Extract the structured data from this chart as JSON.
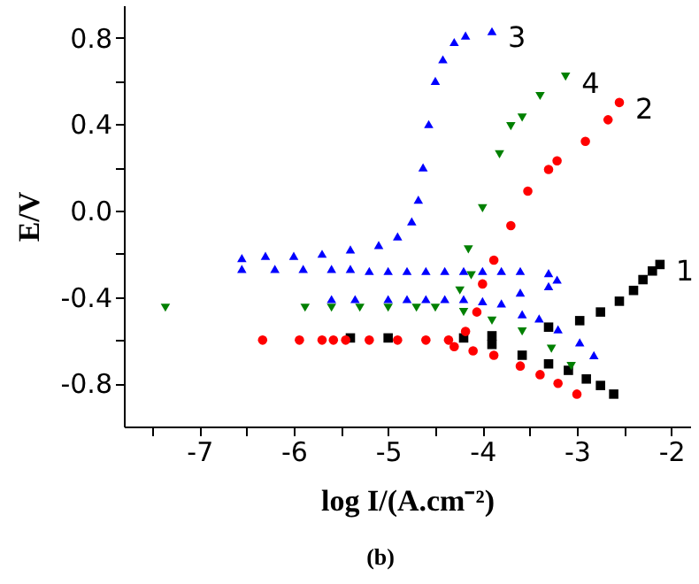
{
  "chart_data": {
    "type": "scatter",
    "xlabel": "log I/(A.cm⁻²)",
    "ylabel": "E/V",
    "annotations": [
      "(b)"
    ],
    "xlim": [
      -7.8,
      -1.8
    ],
    "ylim": [
      -1.0,
      0.95
    ],
    "xticks": [
      {
        "value": -7.5,
        "label": null
      },
      -7,
      {
        "value": -6.5,
        "label": null
      },
      -6,
      {
        "value": -5.5,
        "label": null
      },
      -5,
      {
        "value": -4.5,
        "label": null
      },
      -4,
      {
        "value": -3.5,
        "label": null
      },
      -3,
      {
        "value": -2.5,
        "label": null
      },
      -2
    ],
    "yticks": [
      -0.8,
      {
        "value": -0.6,
        "label": null
      },
      -0.4,
      {
        "value": -0.2,
        "label": null
      },
      {
        "value": 0,
        "label": "0.0"
      },
      {
        "value": 0.2,
        "label": null
      },
      0.4,
      {
        "value": 0.6,
        "label": null
      },
      0.8
    ],
    "grid": false,
    "series": [
      {
        "name": "1",
        "color": "#000000",
        "marker": "square",
        "x": [
          -2.61,
          -2.75,
          -2.9,
          -3.09,
          -3.3,
          -3.58,
          -3.9,
          -5.4,
          -5.0,
          -4.6,
          -4.2,
          -3.9,
          -3.58,
          -3.3,
          -2.97,
          -2.75,
          -2.55,
          -2.4,
          -2.3,
          -2.2,
          -2.12
        ],
        "values": [
          -0.85,
          -0.81,
          -0.78,
          -0.74,
          -0.71,
          -0.67,
          -0.62,
          -0.59,
          -0.59,
          null,
          -0.59,
          -0.58,
          null,
          -0.54,
          -0.51,
          -0.47,
          -0.42,
          -0.37,
          -0.32,
          -0.28,
          -0.25
        ]
      },
      {
        "name": "2",
        "color": "#ff0000",
        "marker": "circle",
        "x": [
          -3.0,
          -3.2,
          -3.39,
          -3.6,
          -3.88,
          -4.1,
          -4.3,
          -6.33,
          -5.94,
          -5.7,
          -5.58,
          -5.45,
          -5.2,
          -4.9,
          -4.6,
          -4.36,
          -4.18,
          -4.06,
          -4.0,
          -3.88,
          -3.7,
          -3.52,
          -3.3,
          -3.21,
          -2.91,
          -2.67,
          -2.55
        ],
        "values": [
          -0.85,
          -0.8,
          -0.76,
          -0.72,
          -0.67,
          -0.65,
          -0.63,
          -0.6,
          -0.6,
          -0.6,
          -0.6,
          -0.6,
          -0.6,
          -0.6,
          -0.6,
          -0.6,
          -0.56,
          -0.47,
          -0.34,
          -0.23,
          -0.07,
          0.09,
          0.19,
          0.23,
          0.32,
          0.42,
          0.5
        ]
      },
      {
        "name": "3",
        "color": "#0000ff",
        "marker": "triangle",
        "x": [
          -5.6,
          -5.35,
          -5.0,
          -4.8,
          -4.6,
          -4.4,
          -4.2,
          -4.0,
          -3.8,
          -3.58,
          -3.4,
          -3.2,
          -2.97,
          -2.82,
          -3.6,
          -3.3,
          -3.21,
          -3.3,
          -3.6,
          -3.8,
          -4.0,
          -4.2,
          -4.4,
          -4.6,
          -4.8,
          -5.0,
          -5.2,
          -5.4,
          -5.6,
          -5.9,
          -6.2,
          -6.55,
          -6.55,
          -6.3,
          -6.0,
          -5.7,
          -5.4,
          -5.1,
          -4.9,
          -4.75,
          -4.68,
          -4.63,
          -4.57,
          -4.5,
          -4.42,
          -4.3,
          -4.18,
          -3.9
        ],
        "values": [
          -0.41,
          -0.41,
          -0.41,
          -0.41,
          -0.41,
          -0.41,
          -0.41,
          -0.42,
          -0.43,
          -0.48,
          -0.5,
          -0.55,
          -0.61,
          -0.67,
          -0.38,
          -0.35,
          -0.32,
          -0.29,
          -0.28,
          -0.28,
          -0.28,
          -0.28,
          -0.28,
          -0.28,
          -0.28,
          -0.28,
          -0.28,
          -0.27,
          -0.27,
          -0.27,
          -0.27,
          -0.27,
          -0.22,
          -0.21,
          -0.21,
          -0.2,
          -0.18,
          -0.16,
          -0.12,
          -0.05,
          0.05,
          0.2,
          0.4,
          0.6,
          0.7,
          0.78,
          0.81,
          0.83
        ]
      },
      {
        "name": "4",
        "color": "#008000",
        "marker": "triangle-down",
        "x": [
          -3.06,
          -3.27,
          -3.58,
          -3.9,
          -4.2,
          -7.36,
          -5.88,
          -5.6,
          -5.3,
          -5.0,
          -4.7,
          -4.5,
          -4.24,
          -4.12,
          -4.15,
          -4.0,
          -3.82,
          -3.7,
          -3.58,
          -3.39,
          -3.12
        ],
        "values": [
          -0.72,
          -0.64,
          -0.56,
          -0.51,
          -0.47,
          -0.45,
          -0.45,
          -0.45,
          -0.45,
          -0.45,
          -0.45,
          -0.45,
          -0.37,
          -0.3,
          -0.18,
          0.01,
          0.26,
          0.39,
          0.43,
          0.53,
          0.62
        ]
      }
    ]
  }
}
